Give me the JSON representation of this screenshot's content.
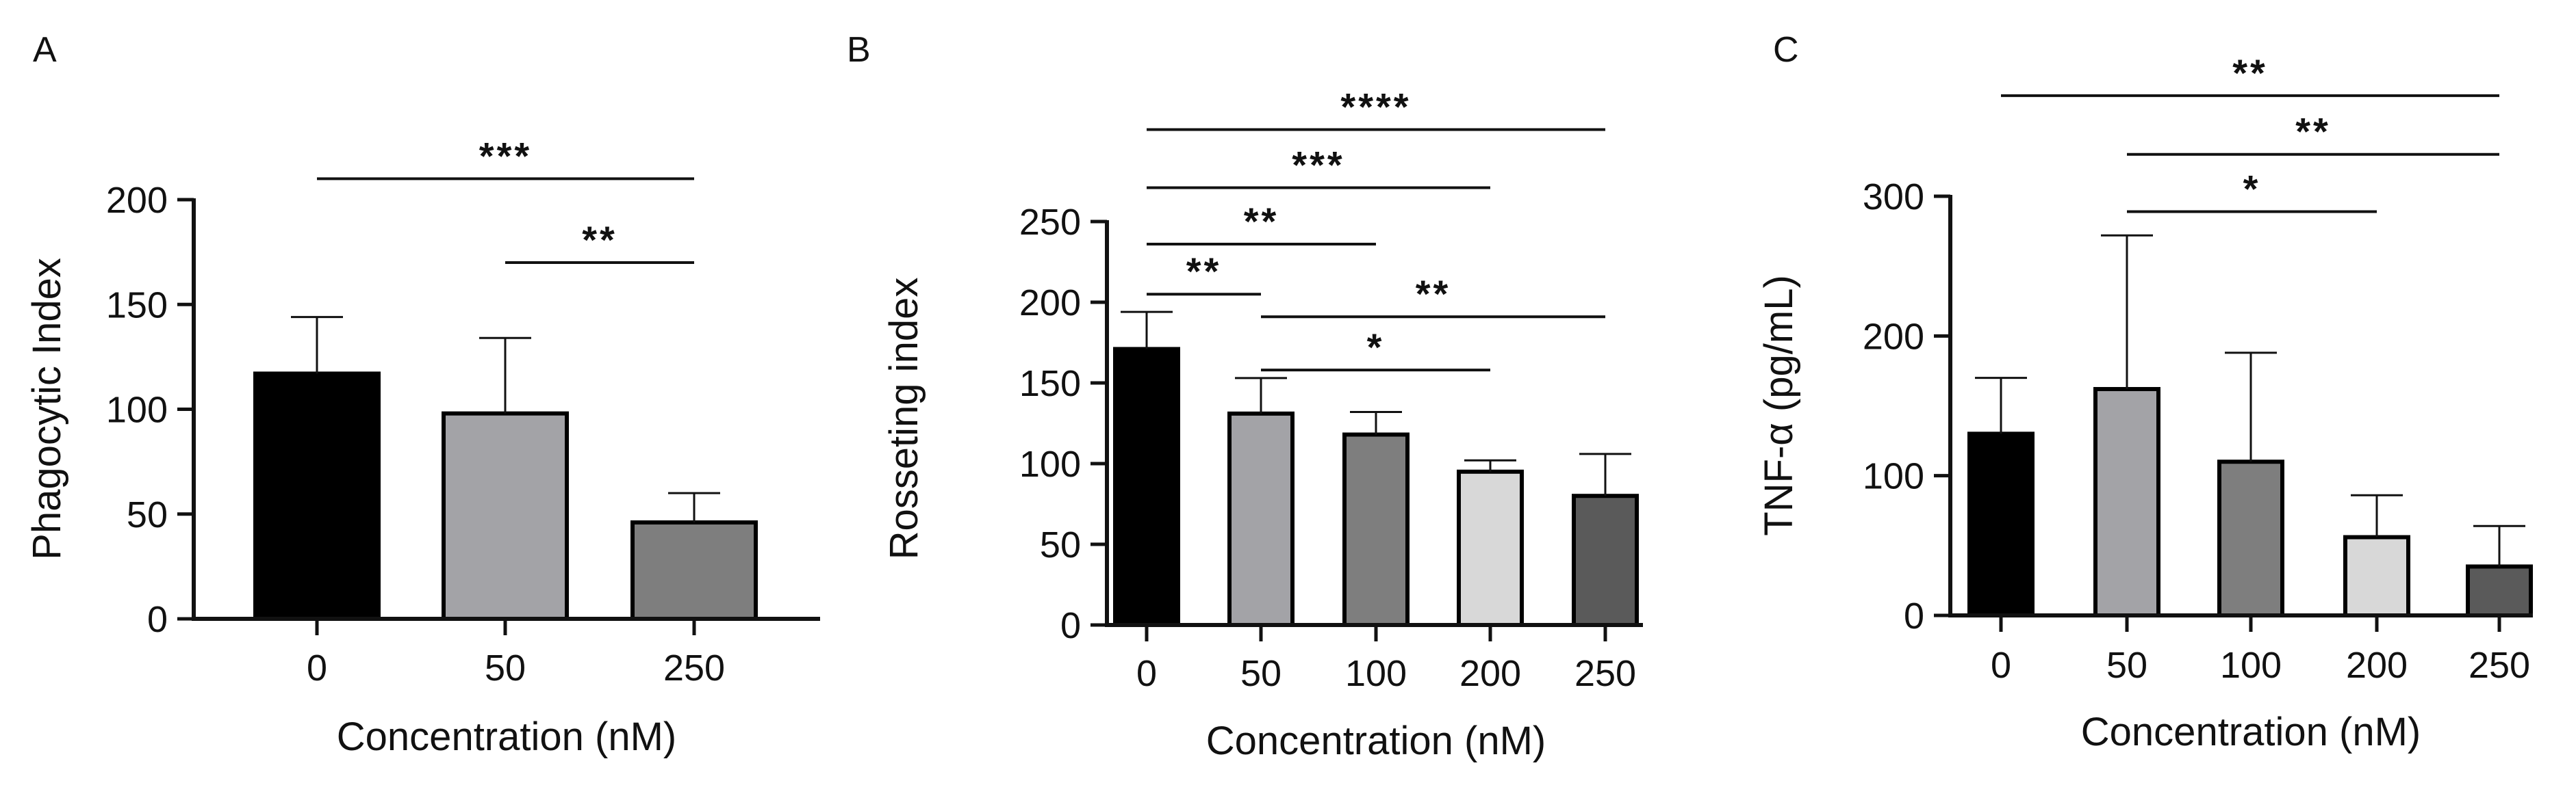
{
  "colors": {
    "ink": "#111111",
    "black_bar": "#000000",
    "light_gray_bar": "#a3a3a7",
    "mid_gray_bar": "#7e7e7e",
    "pale_gray_bar": "#d8d8d8",
    "dark_gray_bar": "#5a5a5a"
  },
  "chart_data": [
    {
      "panel": "A",
      "type": "bar",
      "categories": [
        "0",
        "50",
        "250"
      ],
      "values": [
        117,
        98,
        46
      ],
      "errors": [
        27,
        36,
        14
      ],
      "bar_colors": [
        "#000000",
        "#a3a3a7",
        "#7e7e7e"
      ],
      "ylabel": "Phagocytic Index",
      "xlabel": "Concentration (nM)",
      "ylim": [
        0,
        200
      ],
      "yticks": [
        "0",
        "50",
        "100",
        "150",
        "200"
      ],
      "ytick_values": [
        0,
        50,
        100,
        150,
        200
      ],
      "significance": [
        {
          "from": 0,
          "to": 2,
          "label": "***",
          "level": 210
        },
        {
          "from": 1,
          "to": 2,
          "label": "**",
          "level": 170
        }
      ]
    },
    {
      "panel": "B",
      "type": "bar",
      "categories": [
        "0",
        "50",
        "100",
        "200",
        "250"
      ],
      "values": [
        171,
        131,
        118,
        95,
        80
      ],
      "errors": [
        23,
        22,
        14,
        7,
        26
      ],
      "bar_colors": [
        "#000000",
        "#a3a3a7",
        "#7e7e7e",
        "#d8d8d8",
        "#5a5a5a"
      ],
      "ylabel": "Rosseting index",
      "xlabel": "Concentration (nM)",
      "ylim": [
        0,
        250
      ],
      "yticks": [
        "0",
        "50",
        "100",
        "150",
        "200",
        "250"
      ],
      "ytick_values": [
        0,
        50,
        100,
        150,
        200,
        250
      ],
      "significance": [
        {
          "from": 0,
          "to": 4,
          "label": "****",
          "level": 307
        },
        {
          "from": 0,
          "to": 3,
          "label": "***",
          "level": 271
        },
        {
          "from": 0,
          "to": 2,
          "label": "**",
          "level": 236
        },
        {
          "from": 0,
          "to": 1,
          "label": "**",
          "level": 205
        },
        {
          "from": 1,
          "to": 4,
          "label": "**",
          "level": 191
        },
        {
          "from": 1,
          "to": 3,
          "label": "*",
          "level": 158
        }
      ]
    },
    {
      "panel": "C",
      "type": "bar",
      "categories": [
        "0",
        "50",
        "100",
        "200",
        "250"
      ],
      "values": [
        130,
        162,
        110,
        56,
        35
      ],
      "errors": [
        40,
        110,
        78,
        30,
        29
      ],
      "bar_colors": [
        "#000000",
        "#a3a3a7",
        "#7e7e7e",
        "#d8d8d8",
        "#5a5a5a"
      ],
      "ylabel": "TNF-α (pg/mL)",
      "xlabel": "Concentration (nM)",
      "ylim": [
        0,
        300
      ],
      "yticks": [
        "0",
        "100",
        "200",
        "300"
      ],
      "ytick_values": [
        0,
        100,
        200,
        300
      ],
      "significance": [
        {
          "from": 0,
          "to": 4,
          "label": "**",
          "level": 372
        },
        {
          "from": 1,
          "to": 4,
          "label": "**",
          "level": 330
        },
        {
          "from": 1,
          "to": 3,
          "label": "*",
          "level": 289
        }
      ]
    }
  ]
}
